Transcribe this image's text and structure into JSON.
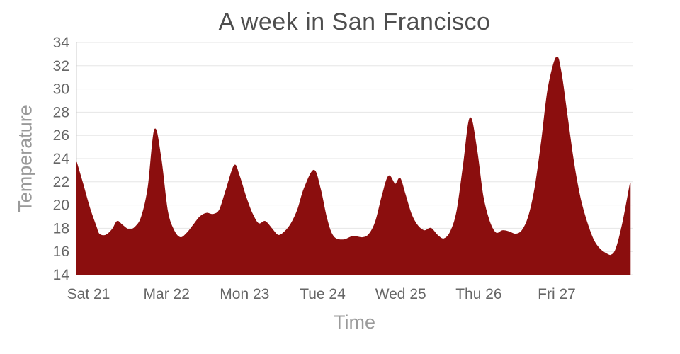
{
  "chart_data": {
    "type": "area",
    "title": "A week in San Francisco",
    "xlabel": "Time",
    "ylabel": "Temperature",
    "legend": "none",
    "grid": "horizontal",
    "ylim": [
      14,
      34
    ],
    "xlim": [
      0,
      171
    ],
    "y_ticks": [
      14,
      16,
      18,
      20,
      22,
      24,
      26,
      28,
      30,
      32,
      34
    ],
    "x_ticks": [
      {
        "label": "Sat 21",
        "hour": 3.7
      },
      {
        "label": "Mar 22",
        "hour": 27.7
      },
      {
        "label": "Mon 23",
        "hour": 51.7
      },
      {
        "label": "Tue 24",
        "hour": 75.7
      },
      {
        "label": "Wed 25",
        "hour": 99.7
      },
      {
        "label": "Thu 26",
        "hour": 123.7
      },
      {
        "label": "Fri 27",
        "hour": 147.7
      }
    ],
    "x_unit": "hours_from_start",
    "x": [
      0,
      2,
      4,
      6,
      7,
      9,
      11,
      12.5,
      14,
      16,
      18,
      20,
      22,
      24,
      26,
      28,
      30,
      32,
      34,
      36,
      38,
      40,
      42,
      44,
      46,
      48.5,
      50,
      52,
      54,
      56,
      58,
      60,
      62,
      64,
      66,
      68,
      70,
      73,
      75,
      77,
      79,
      82,
      85,
      88,
      90,
      92,
      94,
      96,
      98,
      99.5,
      101,
      103,
      105,
      107,
      109,
      111,
      113,
      115,
      117,
      119,
      121,
      123,
      125,
      127,
      129,
      131,
      133,
      135,
      137,
      139,
      141,
      143,
      145,
      147.5,
      149,
      151,
      153,
      155,
      157,
      159,
      161,
      163,
      164.5,
      166,
      168,
      170.3
    ],
    "values": [
      23.7,
      21.8,
      19.8,
      18.2,
      17.5,
      17.4,
      17.9,
      18.6,
      18.3,
      17.9,
      18.1,
      19.0,
      21.5,
      26.5,
      24.0,
      19.5,
      17.8,
      17.2,
      17.6,
      18.3,
      19.0,
      19.3,
      19.2,
      19.6,
      21.3,
      23.4,
      22.6,
      20.8,
      19.3,
      18.4,
      18.6,
      18.0,
      17.4,
      17.7,
      18.4,
      19.6,
      21.4,
      23.0,
      21.4,
      18.8,
      17.3,
      17.0,
      17.3,
      17.2,
      17.5,
      18.6,
      20.8,
      22.5,
      21.8,
      22.3,
      21.0,
      19.2,
      18.2,
      17.8,
      18.0,
      17.4,
      17.1,
      17.7,
      19.5,
      23.5,
      27.5,
      25.0,
      20.8,
      18.6,
      17.6,
      17.8,
      17.7,
      17.5,
      17.8,
      19.0,
      21.5,
      25.5,
      30.0,
      32.7,
      31.5,
      27.5,
      23.5,
      20.5,
      18.5,
      17.0,
      16.2,
      15.8,
      15.7,
      16.3,
      18.5,
      21.9
    ]
  },
  "colors": {
    "area": "#8B0E0E",
    "title": "#4e4e4e",
    "axis_title": "#9a9a9a",
    "tick_label": "#666666",
    "grid": "#e6e6e6",
    "axis_line": "#cccccc",
    "background": "#ffffff"
  }
}
